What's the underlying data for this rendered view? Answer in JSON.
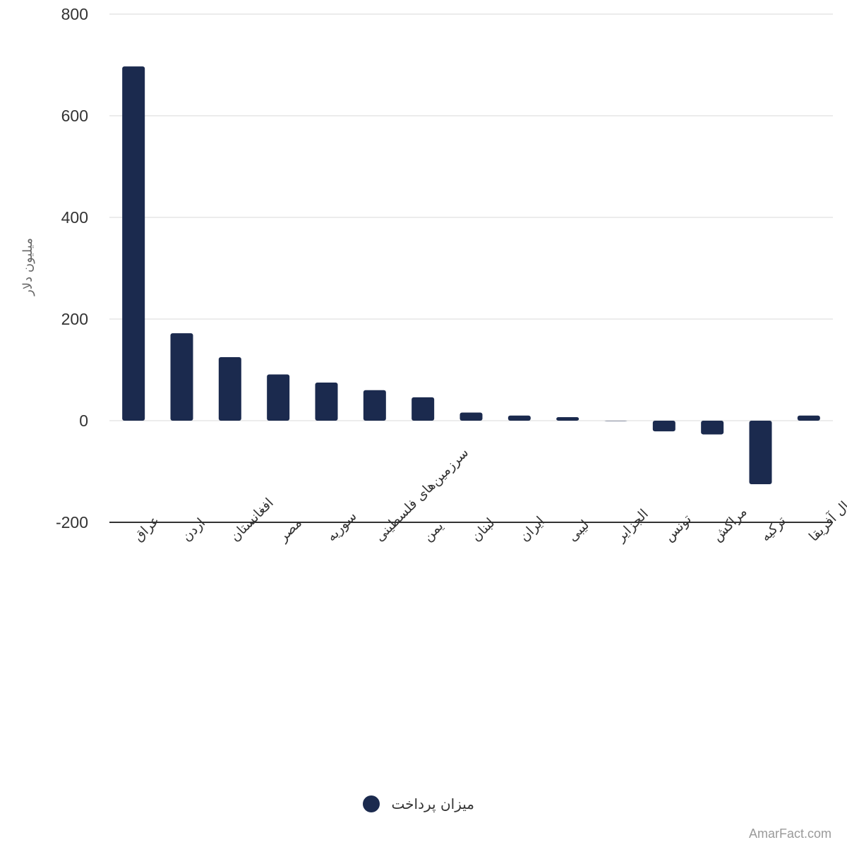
{
  "chart_data": {
    "type": "bar",
    "ylabel": "میلیون دلار",
    "ylim": [
      -200,
      800
    ],
    "yticks": [
      800,
      600,
      400,
      200,
      0,
      -200
    ],
    "grid": true,
    "legend_position": "bottom",
    "bar_color": "#1b2a4e",
    "categories": [
      "عراق",
      "اردن",
      "افغانستان",
      "مصر",
      "سوریه",
      "سرزمین‌های فلسطینی",
      "یمن",
      "لبنان",
      "ایران",
      "لیبی",
      "الجزایر",
      "تونس",
      "مراکش",
      "ترکیه",
      "چندین کشور در خاورمیانه و شمال آفریقا"
    ],
    "series": [
      {
        "name": "میزان پرداخت",
        "values": [
          697,
          172,
          125,
          91,
          75,
          60,
          46,
          16,
          10,
          7,
          0,
          -21,
          -27,
          -125,
          10
        ]
      }
    ]
  },
  "watermark": "AmarFact.com"
}
